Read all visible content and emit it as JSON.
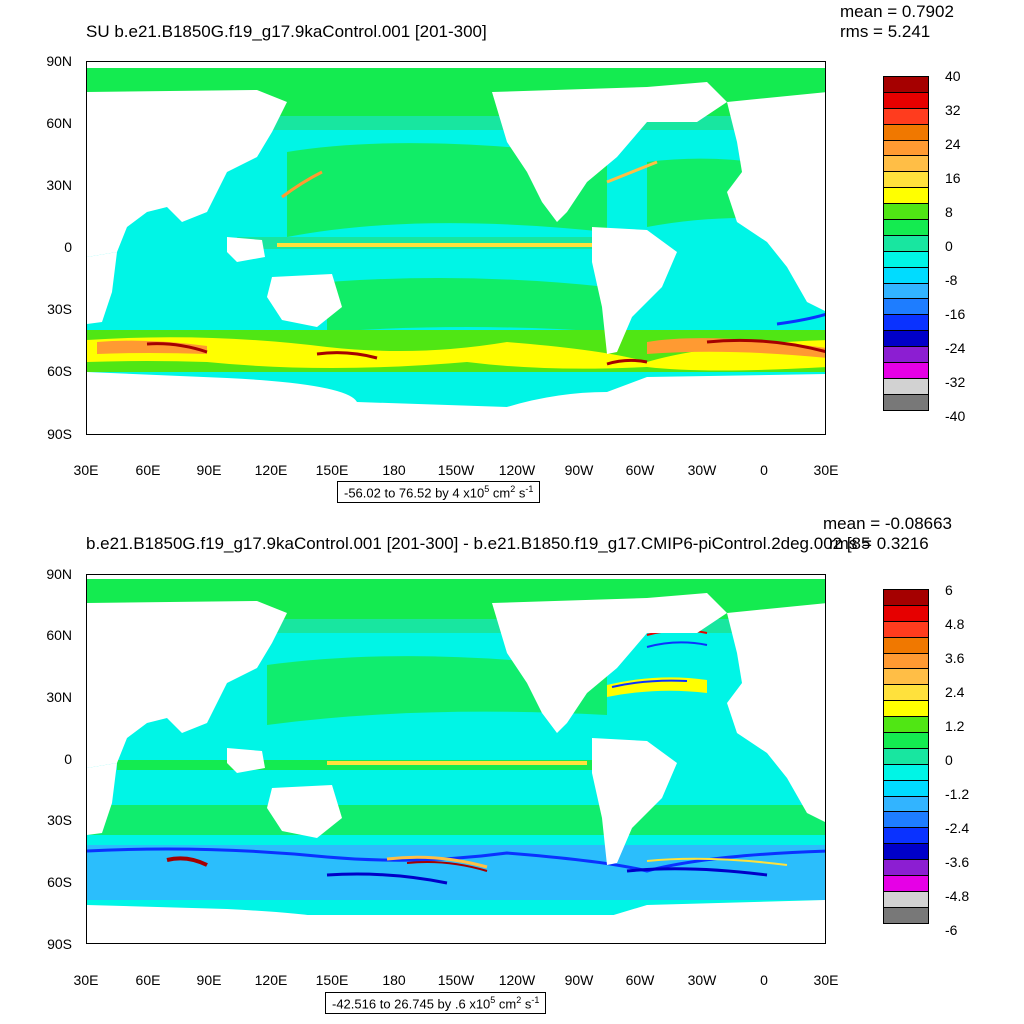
{
  "panels": [
    {
      "title": "SU b.e21.B1850G.f19_g17.9kaControl.001 [201-300]",
      "mean": "mean = 0.7902",
      "rms": "rms = 5.241",
      "colorbar_labels": [
        "40",
        "32",
        "24",
        "16",
        "8",
        "0",
        "-8",
        "-16",
        "-24",
        "-32",
        "-40"
      ],
      "range_note": {
        "text": "-56.02 to 76.52 by 4 x10",
        "exp": "5",
        "units": " cm",
        "units_exp": "2",
        "s": " s",
        "s_exp": "-1"
      }
    },
    {
      "title": "b.e21.B1850G.f19_g17.9kaControl.001 [201-300] - b.e21.B1850.f19_g17.CMIP6-piControl.2deg.002 [85",
      "mean": "mean = -0.08663",
      "rms": "rms = 0.3216",
      "colorbar_labels": [
        "6",
        "4.8",
        "3.6",
        "2.4",
        "1.2",
        "0",
        "-1.2",
        "-2.4",
        "-3.6",
        "-4.8",
        "-6"
      ],
      "range_note": {
        "text": "-42.516 to 26.745 by .6 x10",
        "exp": "5",
        "units": " cm",
        "units_exp": "2",
        "s": " s",
        "s_exp": "-1"
      }
    }
  ],
  "lat_labels": [
    "90N",
    "60N",
    "30N",
    "0",
    "30S",
    "60S",
    "90S"
  ],
  "lon_labels": [
    "30E",
    "60E",
    "90E",
    "120E",
    "150E",
    "180",
    "150W",
    "120W",
    "90W",
    "60W",
    "30W",
    "0",
    "30E"
  ],
  "colors": {
    "bins": [
      "#a50000",
      "#e60000",
      "#ff3c1e",
      "#f07800",
      "#ff9a32",
      "#ffbe46",
      "#ffe13c",
      "#ffff00",
      "#50e614",
      "#14eb50",
      "#18e6a0",
      "#00f5e6",
      "#00dcff",
      "#32b4ff",
      "#1e7dff",
      "#0a32ff",
      "#0000c8",
      "#8c1ed2",
      "#e600e6",
      "#d2d2d2",
      "#787878"
    ],
    "land": "#ffffff"
  }
}
